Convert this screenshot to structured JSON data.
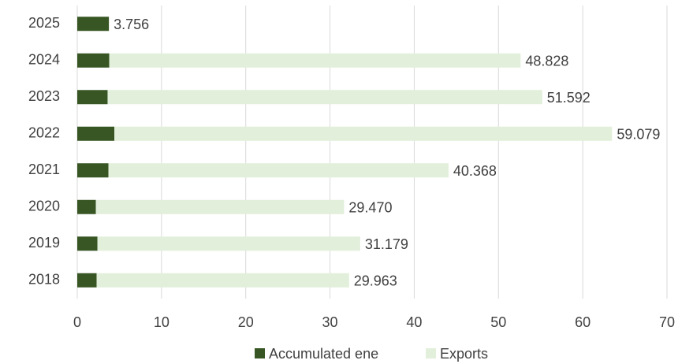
{
  "chart_data": {
    "type": "stacked-bar-horizontal",
    "categories": [
      "2025",
      "2024",
      "2023",
      "2022",
      "2021",
      "2020",
      "2019",
      "2018"
    ],
    "series": [
      {
        "name": "Accumulated ene",
        "color": "#375623",
        "values": [
          3.756,
          3.8,
          3.6,
          4.4,
          3.7,
          2.2,
          2.4,
          2.3
        ],
        "value_labels": [
          "3.756",
          null,
          null,
          null,
          null,
          null,
          null,
          null
        ]
      },
      {
        "name": "Exports",
        "color": "#e2efda",
        "values": [
          null,
          48.828,
          51.592,
          59.079,
          40.368,
          29.47,
          31.179,
          29.963
        ],
        "value_labels": [
          null,
          "48.828",
          "51.592",
          "59.079",
          "40.368",
          "29.470",
          "31.179",
          "29.963"
        ]
      }
    ],
    "xlim": [
      0,
      70
    ],
    "xticks": [
      0,
      10,
      20,
      30,
      40,
      50,
      60,
      70
    ],
    "grid": true
  }
}
